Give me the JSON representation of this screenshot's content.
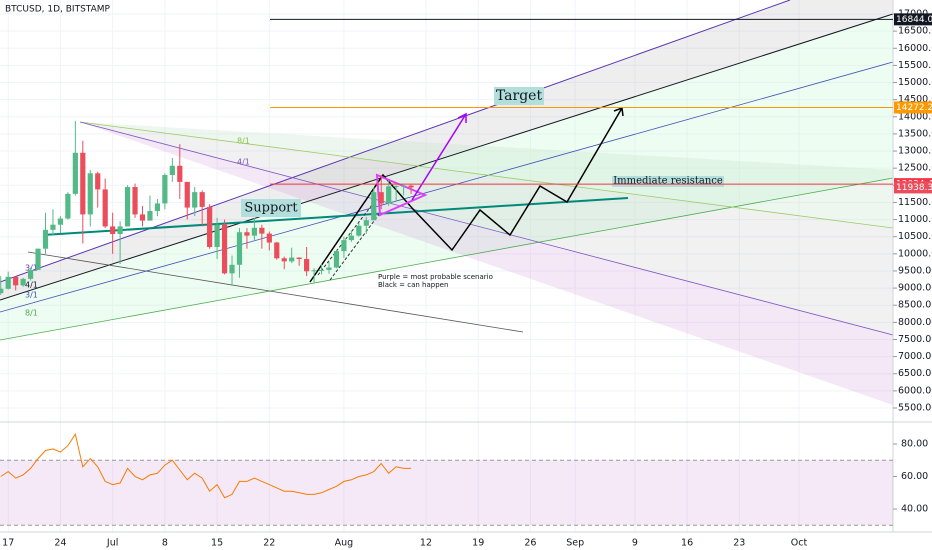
{
  "chart_data": {
    "type": "candlestick",
    "title": "BTCUSD, 1D, BITSTAMP",
    "open": [
      8850,
      8980,
      9330,
      9080,
      9270,
      9530,
      10150,
      10700,
      10850,
      11030,
      11750,
      12950,
      11150,
      12350,
      11880,
      10800,
      10580,
      10800,
      11950,
      11150,
      10970,
      11250,
      11470,
      12300,
      12570,
      12100,
      11350,
      11800,
      11370,
      10200,
      10850,
      9430,
      9680,
      10630,
      10530,
      10760,
      10590,
      10330,
      9870,
      9780,
      9890,
      9850,
      9490,
      9520,
      9530,
      9600,
      10080,
      10400,
      10530,
      10820,
      10980,
      11800,
      11470,
      11970,
      11980,
      11990
    ],
    "high": [
      9350,
      9480,
      9340,
      9300,
      9600,
      10150,
      11200,
      11300,
      11100,
      11800,
      13880,
      13300,
      12450,
      12400,
      12200,
      11200,
      10950,
      12000,
      12050,
      11400,
      11700,
      11600,
      12350,
      12800,
      13200,
      12100,
      11950,
      11850,
      11450,
      11050,
      11000,
      9950,
      10750,
      10750,
      11050,
      10850,
      10650,
      10350,
      9920,
      10180,
      9900,
      10200,
      9580,
      9700,
      9760,
      10120,
      10500,
      10650,
      10900,
      11080,
      11950,
      12300,
      12150,
      12000,
      12050,
      12050
    ],
    "low": [
      8800,
      8960,
      8930,
      9040,
      9220,
      9530,
      10000,
      10550,
      10600,
      11000,
      11700,
      10300,
      10800,
      11350,
      10750,
      10000,
      9700,
      10800,
      11050,
      10800,
      10970,
      11100,
      11300,
      12100,
      11600,
      11000,
      11100,
      10800,
      10150,
      9850,
      9400,
      9070,
      9300,
      10150,
      10400,
      10150,
      10100,
      9830,
      9550,
      9730,
      9650,
      9350,
      9160,
      9400,
      9420,
      9580,
      9880,
      10350,
      10500,
      10580,
      10980,
      11300,
      11400,
      11520,
      11700,
      11750
    ],
    "close": [
      8980,
      9330,
      9080,
      9270,
      9530,
      10150,
      10700,
      10850,
      11030,
      11750,
      12950,
      11150,
      12350,
      11880,
      10800,
      10580,
      10800,
      11950,
      11150,
      10970,
      11250,
      11470,
      12300,
      12570,
      12100,
      11350,
      11800,
      11370,
      10200,
      10850,
      9430,
      9680,
      10630,
      10530,
      10760,
      10590,
      10330,
      9870,
      9780,
      9890,
      9850,
      9490,
      9520,
      9530,
      9600,
      10080,
      10400,
      10530,
      10820,
      10980,
      11800,
      11470,
      11970,
      11980,
      11990,
      11938.33
    ],
    "up_color": "#53b987",
    "down_color": "#eb4d5c",
    "xlim": [
      -0.1,
      119.6
    ],
    "xticks": [
      {
        "value": 1,
        "label": "17"
      },
      {
        "value": 8,
        "label": "24"
      },
      {
        "value": 15,
        "label": "Jul"
      },
      {
        "value": 22,
        "label": "8"
      },
      {
        "value": 29,
        "label": "15"
      },
      {
        "value": 36,
        "label": "22"
      },
      {
        "value": 46,
        "label": "Aug"
      },
      {
        "value": 57,
        "label": "12"
      },
      {
        "value": 64,
        "label": "19"
      },
      {
        "value": 71,
        "label": "26"
      },
      {
        "value": 77,
        "label": "Sep"
      },
      {
        "value": 85,
        "label": "9"
      },
      {
        "value": 92,
        "label": "16"
      },
      {
        "value": 99,
        "label": "23"
      },
      {
        "value": 107,
        "label": "Oct"
      }
    ],
    "ylim": [
      5091,
      17409
    ],
    "yticks": [
      {
        "value": 5500,
        "label": "5500.00"
      },
      {
        "value": 6000,
        "label": "6000.00"
      },
      {
        "value": 6500,
        "label": "6500.00"
      },
      {
        "value": 7000,
        "label": "7000.00"
      },
      {
        "value": 7500,
        "label": "7500.00"
      },
      {
        "value": 8000,
        "label": "8000.00"
      },
      {
        "value": 8500,
        "label": "8500.00"
      },
      {
        "value": 9000,
        "label": "9000.00"
      },
      {
        "value": 9500,
        "label": "9500.00"
      },
      {
        "value": 10000,
        "label": "10000.00"
      },
      {
        "value": 10500,
        "label": "10500.00"
      },
      {
        "value": 11000,
        "label": "11000.00"
      },
      {
        "value": 11500,
        "label": "11500.00"
      },
      {
        "value": 12000,
        "label": "12000.00"
      },
      {
        "value": 12500,
        "label": "12500.00"
      },
      {
        "value": 13000,
        "label": "13000.00"
      },
      {
        "value": 13500,
        "label": "13500.00"
      },
      {
        "value": 14000,
        "label": "14000.00"
      },
      {
        "value": 14500,
        "label": "14500.00"
      },
      {
        "value": 15000,
        "label": "15000.00"
      },
      {
        "value": 15500,
        "label": "15500.00"
      },
      {
        "value": 16000,
        "label": "16000.00"
      },
      {
        "value": 16500,
        "label": "16500.00"
      },
      {
        "value": 17000,
        "label": "17000.00"
      }
    ],
    "price_lines": [
      {
        "value": 16844.07,
        "color": "#131722"
      },
      {
        "value": 14272.22,
        "color": "#ff9800"
      },
      {
        "value": 12034.47,
        "color": "#f23645"
      }
    ],
    "annotations": [
      "Target",
      "Support",
      "Immediate resistance",
      "Purple = most probable scenario",
      "Black = can happen"
    ],
    "fan_labels": [
      "8/1",
      "4/1",
      "3/1",
      "4/1",
      "3/1",
      "8/1"
    ],
    "rsi": {
      "values": [
        60,
        63,
        59,
        61,
        65,
        71,
        76,
        77,
        75,
        79,
        86,
        66,
        71,
        66,
        57,
        55,
        56,
        65,
        60,
        58,
        61,
        62,
        67,
        70,
        64,
        58,
        62,
        59,
        51,
        55,
        47,
        49,
        57,
        57,
        59,
        57,
        55,
        53,
        51,
        51,
        50,
        49,
        49,
        50,
        52,
        54,
        57,
        58,
        60,
        61,
        63,
        68,
        62,
        66,
        65,
        65
      ],
      "color": "#f57c00",
      "ylim": [
        26.5,
        92.9
      ],
      "band": [
        30,
        70
      ],
      "yticks": [
        {
          "value": 40,
          "label": "40.00"
        },
        {
          "value": 60,
          "label": "60.00"
        },
        {
          "value": 80,
          "label": "80.00"
        }
      ]
    }
  }
}
